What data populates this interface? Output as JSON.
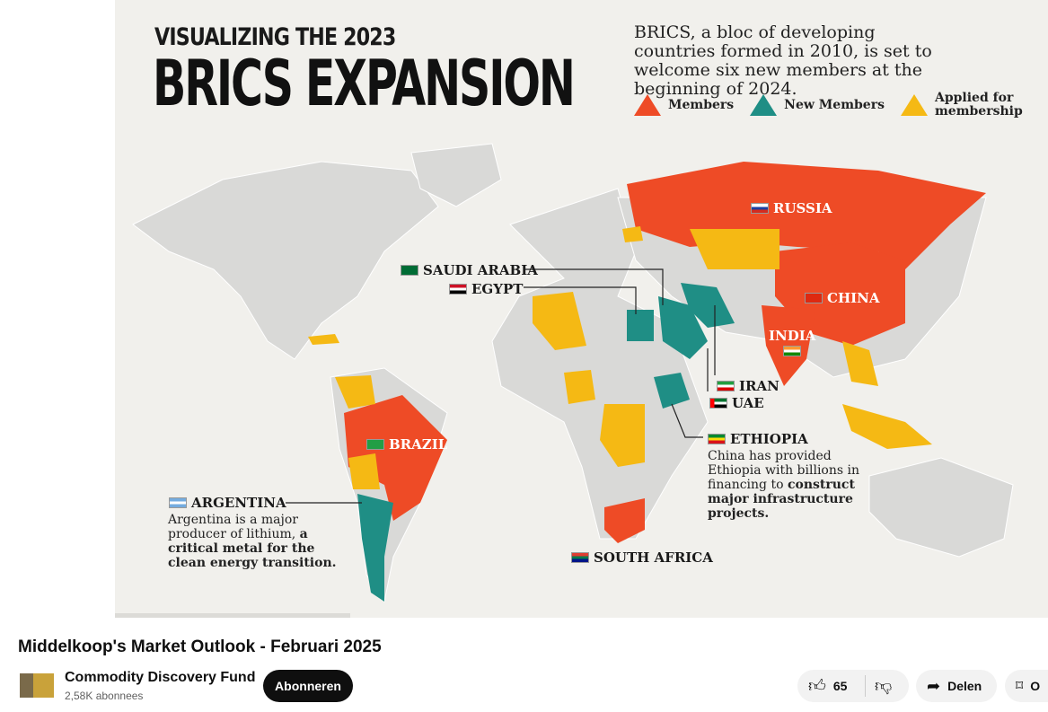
{
  "video": {
    "heading_line1": "VISUALIZING THE 2023",
    "heading_line2": "BRICS EXPANSION",
    "intro": "BRICS, a bloc of developing countries formed in 2010, is set to welcome six new members at the beginning of 2024.",
    "legend": [
      {
        "label": "Members",
        "color": "#ee4b26"
      },
      {
        "label": "New Members",
        "color": "#1f8e85"
      },
      {
        "label": "Applied for membership",
        "color": "#f5b914"
      }
    ],
    "countries": {
      "russia": "RUSSIA",
      "china": "CHINA",
      "india": "INDIA",
      "brazil": "BRAZIL",
      "south_africa": "SOUTH AFRICA",
      "saudi_arabia": "SAUDI ARABIA",
      "egypt": "EGYPT",
      "iran": "IRAN",
      "uae": "UAE",
      "ethiopia": "ETHIOPIA",
      "argentina": "ARGENTINA"
    },
    "notes": {
      "ethiopia_plain": "China has provided Ethiopia with billions in financing to ",
      "ethiopia_bold": "construct major infrastructure projects.",
      "argentina_plain": "Argentina is a major producer of lithium, ",
      "argentina_bold": "a critical metal for the clean energy transition."
    },
    "land_color": "#d9d9d7"
  },
  "page": {
    "title": "Middelkoop's Market Outlook - Februari 2025",
    "channel": "Commodity Discovery Fund",
    "subscribers": "2,58K abonnees",
    "subscribe_label": "Abonneren",
    "likes": "65",
    "share_label": "Delen",
    "save_label": "O"
  }
}
